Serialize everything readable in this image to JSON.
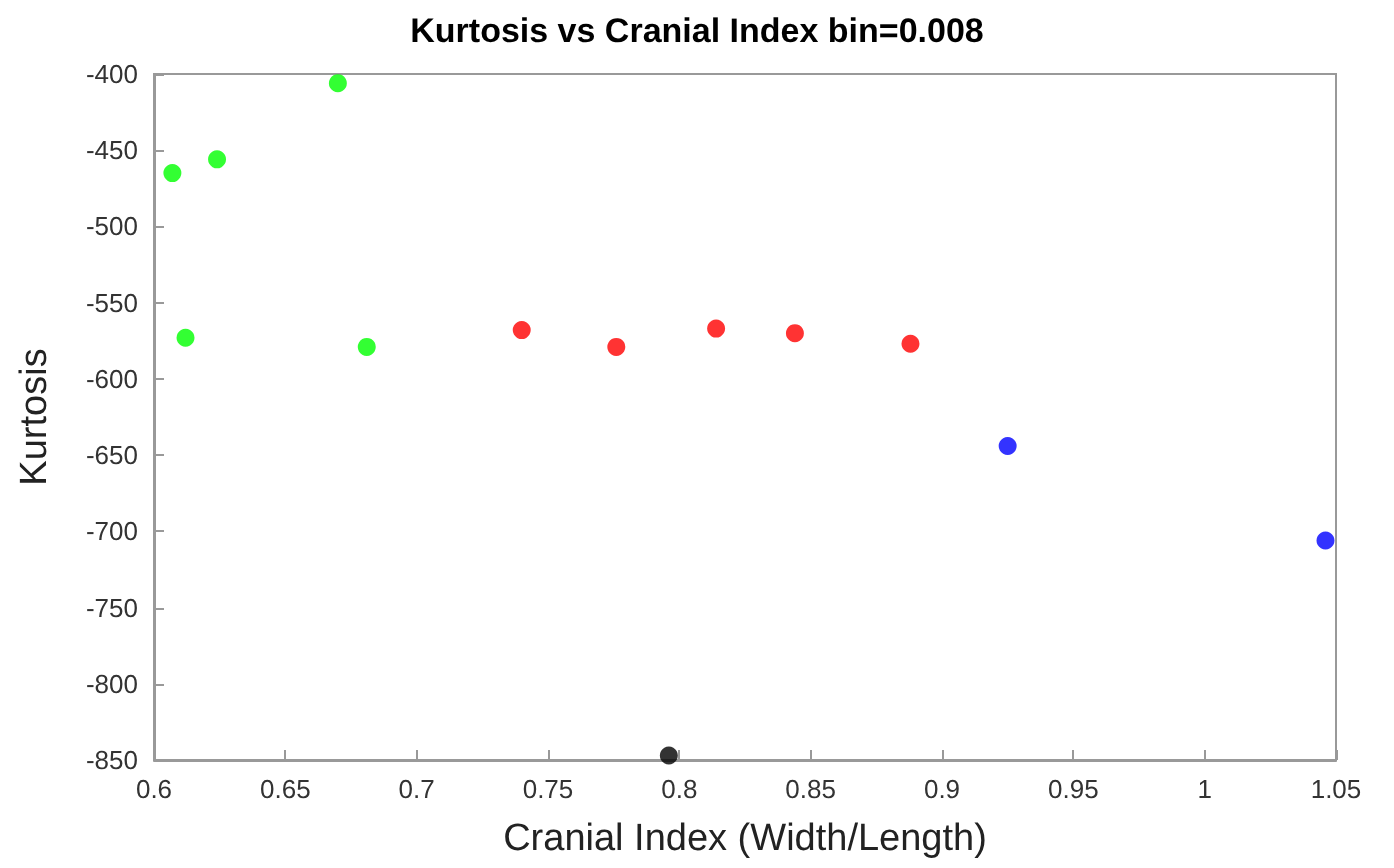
{
  "chart_data": {
    "type": "scatter",
    "title": "Kurtosis vs Cranial Index bin=0.008",
    "xlabel": "Cranial Index (Width/Length)",
    "ylabel": "Kurtosis",
    "xlim": [
      0.6,
      1.05
    ],
    "xticks": [
      0.6,
      0.65,
      0.7,
      0.75,
      0.8,
      0.85,
      0.9,
      0.95,
      1,
      1.05
    ],
    "ylim": [
      -850,
      -400
    ],
    "yticks": [
      -850,
      -800,
      -750,
      -700,
      -650,
      -600,
      -550,
      -500,
      -450,
      -400
    ],
    "grid": false,
    "marker": "circle",
    "series": [
      {
        "color": "#00ff00",
        "x": [
          0.607,
          0.624,
          0.67,
          0.612,
          0.681
        ],
        "values": [
          -465,
          -456,
          -406,
          -573,
          -579
        ]
      },
      {
        "color": "#ff0000",
        "x": [
          0.74,
          0.776,
          0.814,
          0.844,
          0.888
        ],
        "values": [
          -568,
          -579,
          -567,
          -570,
          -577
        ]
      },
      {
        "color": "#000000",
        "x": [
          0.796
        ],
        "values": [
          -847
        ]
      },
      {
        "color": "#0000ff",
        "x": [
          0.925,
          1.046
        ],
        "values": [
          -644,
          -706
        ]
      }
    ]
  }
}
